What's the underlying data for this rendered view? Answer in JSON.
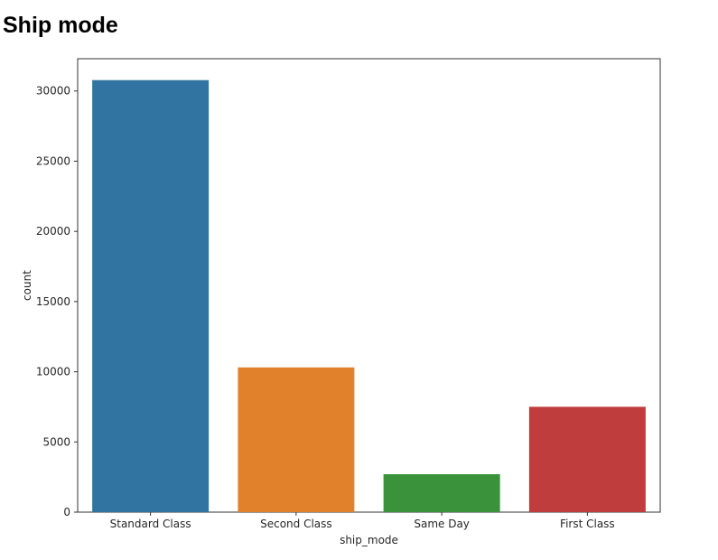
{
  "header": {
    "title": "Ship mode"
  },
  "chart_data": {
    "type": "bar",
    "title": "",
    "xlabel": "ship_mode",
    "ylabel": "count",
    "categories": [
      "Standard Class",
      "Second Class",
      "Same Day",
      "First Class"
    ],
    "values": [
      30775,
      10309,
      2701,
      7505
    ],
    "colors": [
      "#3274a1",
      "#e1812c",
      "#3a923a",
      "#c03d3e"
    ],
    "ylim": [
      0,
      32300
    ],
    "yticks": [
      0,
      5000,
      10000,
      15000,
      20000,
      25000,
      30000
    ],
    "grid": false,
    "legend": "none"
  }
}
